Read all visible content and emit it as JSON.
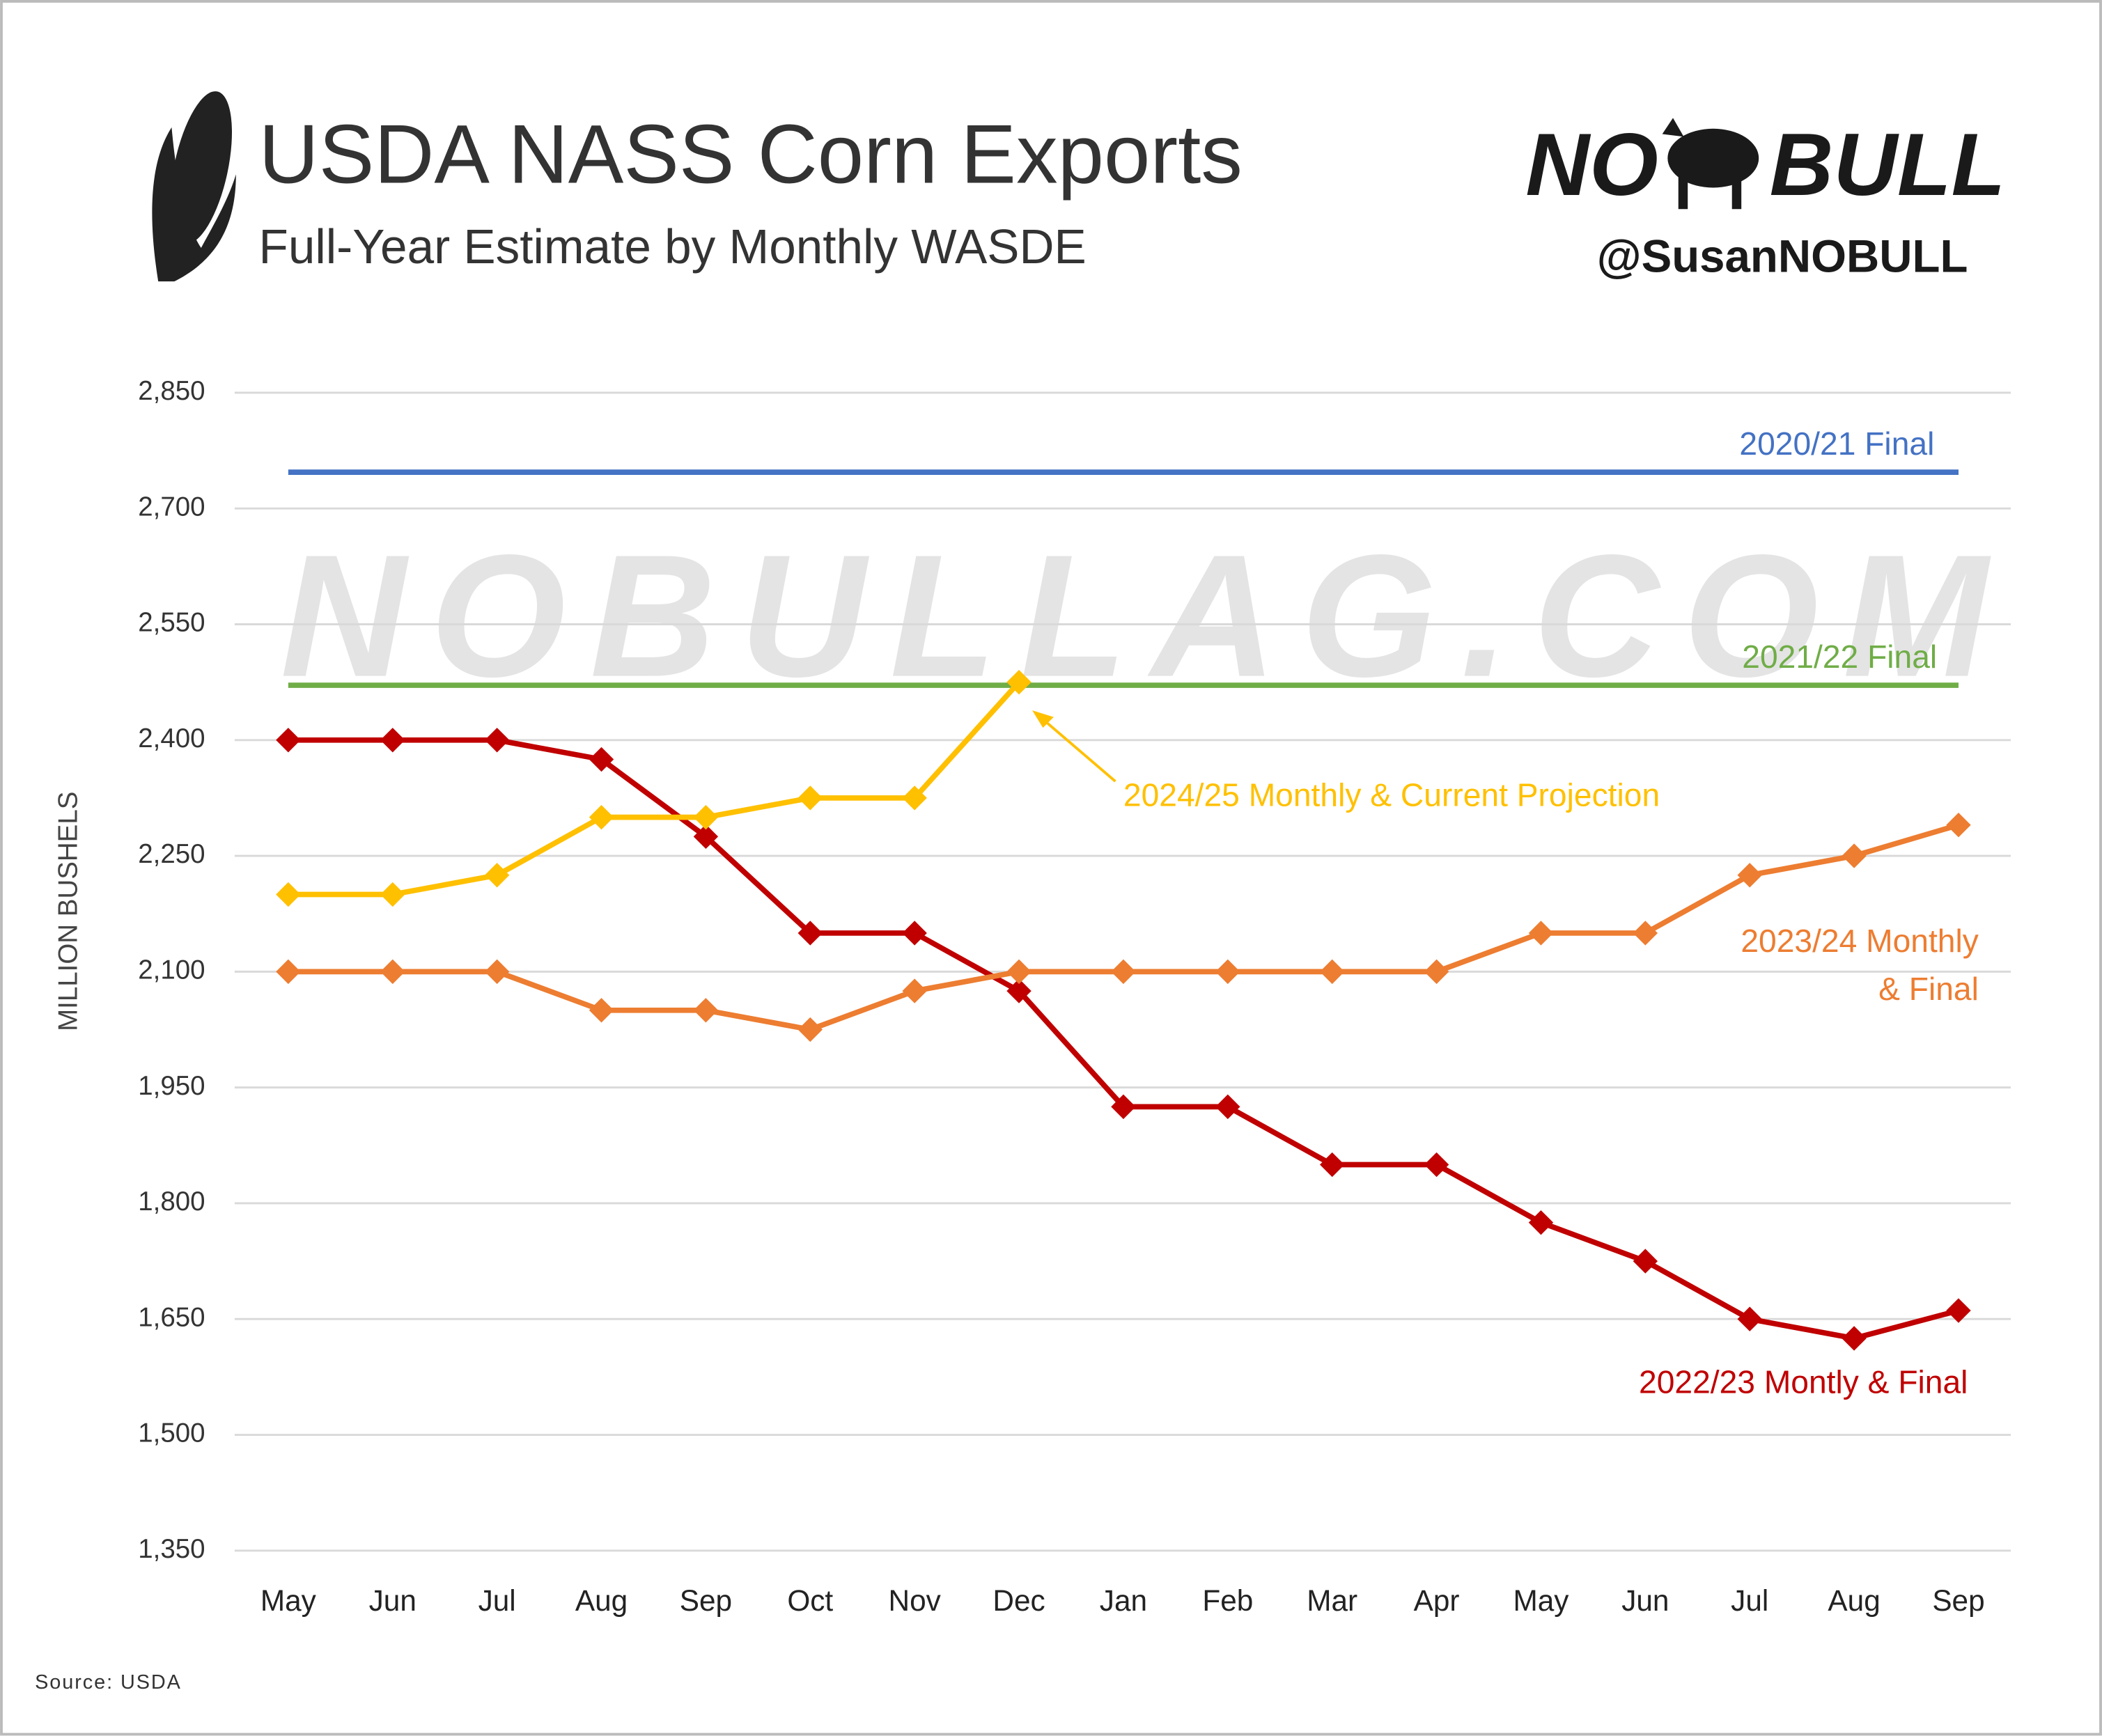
{
  "header": {
    "title": "USDA NASS Corn Exports",
    "subtitle": "Full-Year Estimate by Monthly WASDE",
    "logo": [
      "NO",
      "BULL"
    ],
    "handle": "@SusanNOBULL"
  },
  "watermark": "NOBULLAG.COM",
  "source": "Source: USDA",
  "chart_data": {
    "type": "line",
    "y_label": "MILLION BUSHELS",
    "categories": [
      "May",
      "Jun",
      "Jul",
      "Aug",
      "Sep",
      "Oct",
      "Nov",
      "Dec",
      "Jan",
      "Feb",
      "Mar",
      "Apr",
      "May",
      "Jun",
      "Jul",
      "Aug",
      "Sep"
    ],
    "series": [
      {
        "name": "2022/23 Montly & Final",
        "color": "#c00000",
        "values": [
          2400,
          2400,
          2400,
          2375,
          2275,
          2150,
          2150,
          2075,
          1925,
          1925,
          1850,
          1850,
          1775,
          1725,
          1650,
          1625,
          1661
        ]
      },
      {
        "name": "2023/24 Monthly & Final",
        "color": "#ed7d31",
        "values": [
          2100,
          2100,
          2100,
          2050,
          2050,
          2025,
          2075,
          2100,
          2100,
          2100,
          2100,
          2100,
          2150,
          2150,
          2225,
          2250,
          2290
        ]
      },
      {
        "name": "2024/25 Monthly & Current Projection",
        "color": "#ffc000",
        "values": [
          2200,
          2200,
          2225,
          2300,
          2300,
          2325,
          2325,
          2475,
          null,
          null,
          null,
          null,
          null,
          null,
          null,
          null,
          null
        ]
      }
    ],
    "reference_lines": [
      {
        "name": "2020/21 Final",
        "color": "#4472c4",
        "value": 2747
      },
      {
        "name": "2021/22 Final",
        "color": "#70ad47",
        "value": 2471
      }
    ],
    "ylim": [
      1350,
      2850
    ],
    "yticks": [
      {
        "value": 1350,
        "label": "1,350"
      },
      {
        "value": 1500,
        "label": "1,500"
      },
      {
        "value": 1650,
        "label": "1,650"
      },
      {
        "value": 1800,
        "label": "1,800"
      },
      {
        "value": 1950,
        "label": "1,950"
      },
      {
        "value": 2100,
        "label": "2,100"
      },
      {
        "value": 2250,
        "label": "2,250"
      },
      {
        "value": 2400,
        "label": "2,400"
      },
      {
        "value": 2550,
        "label": "2,550"
      },
      {
        "value": 2700,
        "label": "2,700"
      },
      {
        "value": 2850,
        "label": "2,850"
      }
    ],
    "grid": true
  }
}
